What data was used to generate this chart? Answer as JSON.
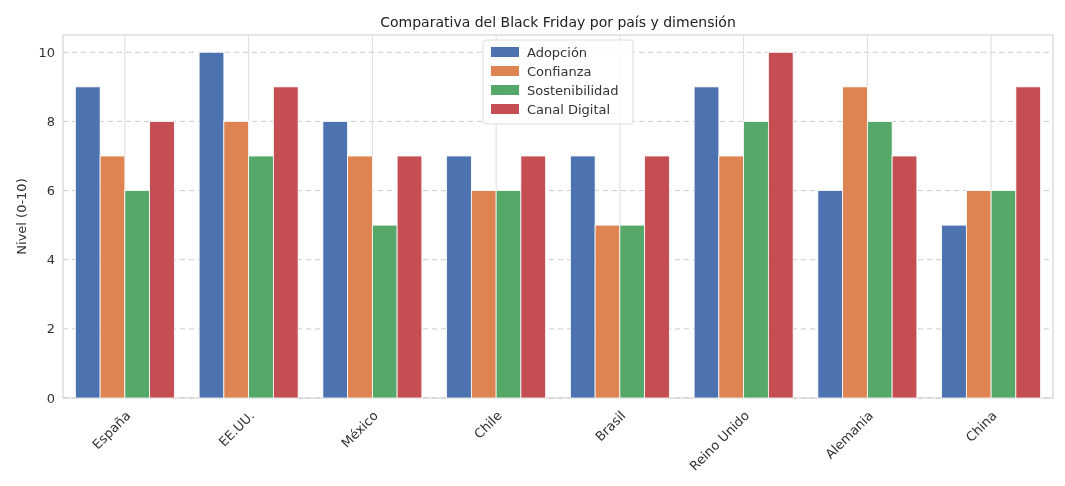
{
  "chart_data": {
    "type": "bar",
    "title": "Comparativa del Black Friday por país y dimensión",
    "ylabel": "Nivel (0-10)",
    "categories": [
      "España",
      "EE.UU.",
      "México",
      "Chile",
      "Brasil",
      "Reino Unido",
      "Alemania",
      "China"
    ],
    "series": [
      {
        "name": "Adopción",
        "color": "#4c72b0",
        "values": [
          9,
          10,
          8,
          7,
          7,
          9,
          6,
          5
        ]
      },
      {
        "name": "Confianza",
        "color": "#dd8452",
        "values": [
          7,
          8,
          7,
          6,
          5,
          7,
          9,
          6
        ]
      },
      {
        "name": "Sostenibilidad",
        "color": "#55a868",
        "values": [
          6,
          7,
          5,
          6,
          5,
          8,
          8,
          6
        ]
      },
      {
        "name": "Canal Digital",
        "color": "#c44e52",
        "values": [
          8,
          9,
          7,
          7,
          7,
          10,
          7,
          9
        ]
      }
    ],
    "ylim": [
      0,
      10.5
    ],
    "yticks": [
      0,
      2,
      4,
      6,
      8,
      10
    ],
    "grid": true,
    "legend": "top"
  }
}
